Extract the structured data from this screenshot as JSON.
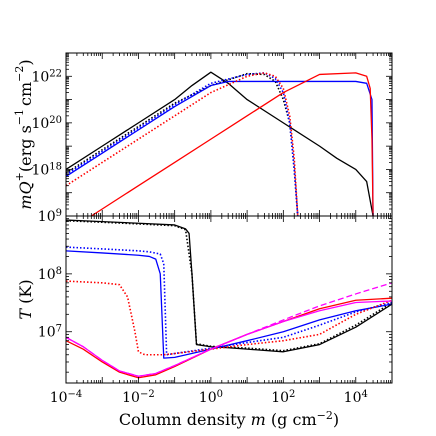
{
  "chart_data": [
    {
      "type": "line",
      "name": "top-panel",
      "xscale": "log",
      "yscale": "log",
      "xlim": [
        0.0001,
        100000
      ],
      "ylim": [
        1e+16,
        1e+23
      ],
      "ylabel": {
        "main": "mQ",
        "sup1": "+",
        "unit1": "(erg s",
        "sup2": "−1",
        "unit2": "cm",
        "sup3": "−2",
        "close": ")"
      },
      "yticks": [
        {
          "value": 1e+18,
          "base": "10",
          "exp": "18"
        },
        {
          "value": 1e+20,
          "base": "10",
          "exp": "20"
        },
        {
          "value": 1e+22,
          "base": "10",
          "exp": "22"
        }
      ],
      "series": [
        {
          "color": "#000000",
          "style": "solid",
          "x": [
            0.0001,
            0.001,
            0.01,
            0.1,
            0.3,
            1.0,
            3,
            10,
            100,
            1000,
            3000,
            10000,
            20000,
            30000
          ],
          "y": [
            1e+18,
            1e+19,
            1e+20,
            1e+21,
            4e+21,
            1.5e+22,
            5e+21,
            1e+21,
            1e+20,
            1e+19,
            3e+18,
            1e+18,
            3e+17,
            1e+16
          ]
        },
        {
          "color": "#000000",
          "style": "dotted",
          "x": [
            0.0001,
            0.001,
            0.01,
            0.1,
            1,
            10,
            30,
            60,
            100,
            150,
            200,
            250
          ],
          "y": [
            7e+17,
            7e+18,
            7e+19,
            7e+20,
            4e+21,
            1.3e+22,
            1.2e+22,
            6e+21,
            1e+21,
            1e+20,
            1e+18,
            1e+16
          ]
        },
        {
          "color": "#0000ff",
          "style": "solid",
          "x": [
            0.0001,
            0.001,
            0.01,
            0.1,
            1,
            3,
            10,
            100,
            1000,
            10000,
            20000,
            28000,
            30000
          ],
          "y": [
            5e+17,
            5e+18,
            5e+19,
            5e+20,
            4e+21,
            6e+21,
            6e+21,
            6e+21,
            6e+21,
            6e+21,
            5e+21,
            1e+21,
            1e+16
          ]
        },
        {
          "color": "#0000ff",
          "style": "dotted",
          "x": [
            0.0001,
            0.001,
            0.01,
            0.1,
            1,
            10,
            30,
            60,
            100,
            150,
            200,
            250
          ],
          "y": [
            6e+17,
            6e+18,
            6e+19,
            6e+20,
            5e+21,
            1.2e+22,
            1.4e+22,
            8e+21,
            2e+21,
            1e+20,
            1e+18,
            1e+16
          ]
        },
        {
          "color": "#ff0000",
          "style": "dotted",
          "x": [
            0.0001,
            0.001,
            0.01,
            0.1,
            1,
            10,
            30,
            60,
            100,
            150,
            200,
            250
          ],
          "y": [
            2e+17,
            2e+18,
            2e+19,
            2e+20,
            2e+21,
            1e+22,
            1.4e+22,
            1e+22,
            3e+21,
            2e+20,
            3e+18,
            1e+16
          ]
        },
        {
          "color": "#ff0000",
          "style": "solid",
          "x": [
            0.0005,
            0.001,
            0.01,
            0.1,
            1,
            10,
            100,
            1000,
            10000,
            20000,
            25000,
            28000,
            30000
          ],
          "y": [
            1e+16,
            2e+16,
            2e+17,
            2e+18,
            2e+19,
            2e+20,
            2e+21,
            1.2e+22,
            1.4e+22,
            1e+22,
            3e+21,
            2e+19,
            1e+16
          ]
        }
      ]
    },
    {
      "type": "line",
      "name": "bottom-panel",
      "xscale": "log",
      "yscale": "log",
      "xlim": [
        0.0001,
        100000
      ],
      "ylim": [
        1300000.0,
        1000000000.0
      ],
      "xlabel": {
        "prefix": "Column density ",
        "var": "m",
        "unit": " (g cm",
        "sup": "−2",
        "close": ")"
      },
      "ylabel": {
        "main": "T",
        "unit": " (K)"
      },
      "xticks": [
        {
          "value": 0.0001,
          "base": "10",
          "exp": "−4"
        },
        {
          "value": 0.01,
          "base": "10",
          "exp": "−2"
        },
        {
          "value": 1,
          "base": "10",
          "exp": "0"
        },
        {
          "value": 100,
          "base": "10",
          "exp": "2"
        },
        {
          "value": 10000,
          "base": "10",
          "exp": "4"
        }
      ],
      "yticks": [
        {
          "value": 10000000.0,
          "base": "10",
          "exp": "7"
        },
        {
          "value": 100000000.0,
          "base": "10",
          "exp": "8"
        },
        {
          "value": 1000000000.0,
          "base": "10",
          "exp": "9"
        }
      ],
      "series": [
        {
          "color": "#000000",
          "style": "solid",
          "x": [
            0.0001,
            0.001,
            0.01,
            0.1,
            0.2,
            0.25,
            0.3,
            0.4,
            1,
            3,
            10,
            100,
            1000,
            10000,
            100000
          ],
          "y": [
            850000000.0,
            800000000.0,
            750000000.0,
            700000000.0,
            600000000.0,
            500000000.0,
            100000000.0,
            6000000.0,
            5500000.0,
            5300000.0,
            5000000.0,
            4500000.0,
            6000000.0,
            12000000.0,
            30000000.0
          ]
        },
        {
          "color": "#000000",
          "style": "dotted",
          "x": [
            0.0001,
            0.001,
            0.01,
            0.1,
            0.2,
            0.3,
            0.4,
            1,
            10,
            100,
            1000,
            10000,
            100000
          ],
          "y": [
            830000000.0,
            780000000.0,
            730000000.0,
            680000000.0,
            580000000.0,
            100000000.0,
            6200000.0,
            5600000.0,
            5200000.0,
            4700000.0,
            6200000.0,
            13000000.0,
            32000000.0
          ]
        },
        {
          "color": "#0000ff",
          "style": "solid",
          "x": [
            0.0001,
            0.001,
            0.01,
            0.02,
            0.03,
            0.04,
            0.05,
            0.1,
            1,
            10,
            100,
            1000,
            10000,
            100000
          ],
          "y": [
            250000000.0,
            230000000.0,
            210000000.0,
            200000000.0,
            180000000.0,
            100000000.0,
            3500000.0,
            3600000.0,
            5000000.0,
            7000000.0,
            10000000.0,
            16000000.0,
            23000000.0,
            30000000.0
          ]
        },
        {
          "color": "#0000ff",
          "style": "dotted",
          "x": [
            0.0001,
            0.001,
            0.01,
            0.02,
            0.04,
            0.05,
            0.06,
            0.1,
            1,
            10,
            100,
            1000,
            10000,
            100000
          ],
          "y": [
            290000000.0,
            270000000.0,
            250000000.0,
            240000000.0,
            220000000.0,
            150000000.0,
            4000000.0,
            4200000.0,
            5200000.0,
            6500000.0,
            8000000.0,
            13000000.0,
            22000000.0,
            32000000.0
          ]
        },
        {
          "color": "#ff0000",
          "style": "dotted",
          "x": [
            0.0001,
            0.001,
            0.003,
            0.005,
            0.008,
            0.01,
            0.015,
            0.02,
            0.05,
            0.1,
            1,
            10,
            100,
            1000,
            10000,
            100000
          ],
          "y": [
            75000000.0,
            70000000.0,
            65000000.0,
            40000000.0,
            10000000.0,
            4500000.0,
            4000000.0,
            4000000.0,
            4000000.0,
            4200000.0,
            5000000.0,
            6000000.0,
            7000000.0,
            9000000.0,
            20000000.0,
            35000000.0
          ]
        },
        {
          "color": "#ff0000",
          "style": "solid",
          "x": [
            0.0001,
            0.0003,
            0.001,
            0.003,
            0.01,
            0.03,
            0.1,
            1,
            10,
            100,
            1000,
            10000,
            100000
          ],
          "y": [
            7000000.0,
            5000000.0,
            3000000.0,
            2000000.0,
            1600000.0,
            1800000.0,
            2500000.0,
            5000000.0,
            9000000.0,
            15000000.0,
            25000000.0,
            35000000.0,
            38000000.0
          ]
        },
        {
          "color": "#ff00ff",
          "style": "solid",
          "x": [
            0.0001,
            0.0003,
            0.001,
            0.003,
            0.01,
            0.03,
            0.1,
            1,
            10,
            100,
            1000,
            10000,
            100000
          ],
          "y": [
            8000000.0,
            5500000.0,
            3200000.0,
            2100000.0,
            1700000.0,
            1900000.0,
            2600000.0,
            5000000.0,
            9000000.0,
            15000000.0,
            23000000.0,
            32000000.0,
            34000000.0
          ]
        },
        {
          "color": "#ff00ff",
          "style": "dashed",
          "x": [
            0.0001,
            0.0003,
            0.001,
            0.003,
            0.01,
            0.03,
            0.1,
            1,
            10,
            100,
            1000,
            10000,
            100000
          ],
          "y": [
            8000000.0,
            5500000.0,
            3200000.0,
            2100000.0,
            1700000.0,
            1900000.0,
            2600000.0,
            5000000.0,
            9000000.0,
            16000000.0,
            28000000.0,
            45000000.0,
            70000000.0
          ]
        }
      ]
    }
  ]
}
